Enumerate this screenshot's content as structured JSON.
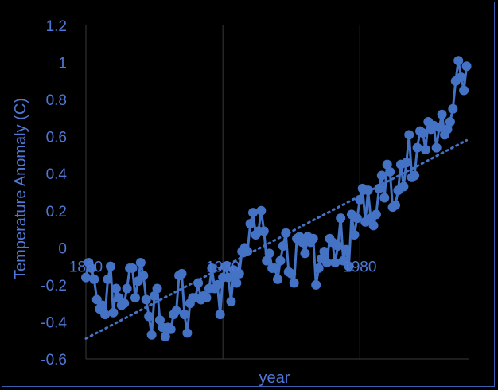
{
  "chart_data": {
    "type": "scatter",
    "xlabel": "year",
    "ylabel": "Temperature Anomaly (C)",
    "xlim": [
      1880,
      2020
    ],
    "ylim": [
      -0.6,
      1.2
    ],
    "y_ticks": [
      "-0.6",
      "-0.4",
      "-0.2",
      "0",
      "0.2",
      "0.4",
      "0.6",
      "0.8",
      "1",
      "1.2"
    ],
    "x_ticks": [
      {
        "value": 1880,
        "label": "1880"
      },
      {
        "value": 1930,
        "label": "1930"
      },
      {
        "value": 1980,
        "label": "1980"
      }
    ],
    "grid": {
      "vertical": true,
      "horizontal": false
    },
    "colors": {
      "series": "#4472c4",
      "tick_text": "#4f78d6",
      "grid": "#3a3a3a",
      "border": "#3a5fb0"
    },
    "series": [
      {
        "style": "line-markers",
        "x": [
          1880,
          1881,
          1882,
          1883,
          1884,
          1885,
          1886,
          1887,
          1888,
          1889,
          1890,
          1891,
          1892,
          1893,
          1894,
          1895,
          1896,
          1897,
          1898,
          1899,
          1900,
          1901,
          1902,
          1903,
          1904,
          1905,
          1906,
          1907,
          1908,
          1909,
          1910,
          1911,
          1912,
          1913,
          1914,
          1915,
          1916,
          1917,
          1918,
          1919,
          1920,
          1921,
          1922,
          1923,
          1924,
          1925,
          1926,
          1927,
          1928,
          1929,
          1930,
          1931,
          1932,
          1933,
          1934,
          1935,
          1936,
          1937,
          1938,
          1939,
          1940,
          1941,
          1942,
          1943,
          1944,
          1945,
          1946,
          1947,
          1948,
          1949,
          1950,
          1951,
          1952,
          1953,
          1954,
          1955,
          1956,
          1957,
          1958,
          1959,
          1960,
          1961,
          1962,
          1963,
          1964,
          1965,
          1966,
          1967,
          1968,
          1969,
          1970,
          1971,
          1972,
          1973,
          1974,
          1975,
          1976,
          1977,
          1978,
          1979,
          1980,
          1981,
          1982,
          1983,
          1984,
          1985,
          1986,
          1987,
          1988,
          1989,
          1990,
          1991,
          1992,
          1993,
          1994,
          1995,
          1996,
          1997,
          1998,
          1999,
          2000,
          2001,
          2002,
          2003,
          2004,
          2005,
          2006,
          2007,
          2008,
          2009,
          2010,
          2011,
          2012,
          2013,
          2014,
          2015,
          2016,
          2017,
          2018,
          2019
        ],
        "y": [
          -0.16,
          -0.08,
          -0.11,
          -0.17,
          -0.28,
          -0.33,
          -0.31,
          -0.36,
          -0.17,
          -0.1,
          -0.35,
          -0.22,
          -0.27,
          -0.31,
          -0.3,
          -0.22,
          -0.11,
          -0.11,
          -0.27,
          -0.18,
          -0.08,
          -0.15,
          -0.28,
          -0.37,
          -0.47,
          -0.26,
          -0.22,
          -0.39,
          -0.43,
          -0.48,
          -0.43,
          -0.44,
          -0.36,
          -0.34,
          -0.15,
          -0.14,
          -0.36,
          -0.46,
          -0.3,
          -0.27,
          -0.27,
          -0.19,
          -0.28,
          -0.26,
          -0.27,
          -0.22,
          -0.11,
          -0.22,
          -0.2,
          -0.36,
          -0.16,
          -0.1,
          -0.16,
          -0.29,
          -0.12,
          -0.19,
          -0.14,
          -0.02,
          -0.0,
          -0.02,
          0.13,
          0.19,
          0.07,
          0.09,
          0.2,
          0.09,
          -0.07,
          -0.03,
          -0.11,
          -0.11,
          -0.17,
          -0.07,
          0.01,
          0.08,
          -0.13,
          -0.14,
          -0.19,
          0.05,
          0.06,
          0.03,
          -0.03,
          0.06,
          0.03,
          0.05,
          -0.2,
          -0.11,
          -0.06,
          -0.02,
          -0.08,
          0.05,
          0.03,
          -0.08,
          0.01,
          0.16,
          -0.07,
          -0.01,
          -0.1,
          0.18,
          0.07,
          0.16,
          0.26,
          0.32,
          0.14,
          0.31,
          0.16,
          0.12,
          0.18,
          0.32,
          0.39,
          0.27,
          0.45,
          0.41,
          0.22,
          0.23,
          0.31,
          0.45,
          0.33,
          0.46,
          0.61,
          0.38,
          0.39,
          0.54,
          0.63,
          0.62,
          0.53,
          0.68,
          0.64,
          0.66,
          0.54,
          0.65,
          0.72,
          0.61,
          0.64,
          0.68,
          0.75,
          0.9,
          1.01,
          0.92,
          0.85,
          0.98
        ]
      },
      {
        "style": "dotted-trendline",
        "x": [
          1880,
          2019
        ],
        "y": [
          -0.49,
          0.58
        ]
      }
    ]
  }
}
